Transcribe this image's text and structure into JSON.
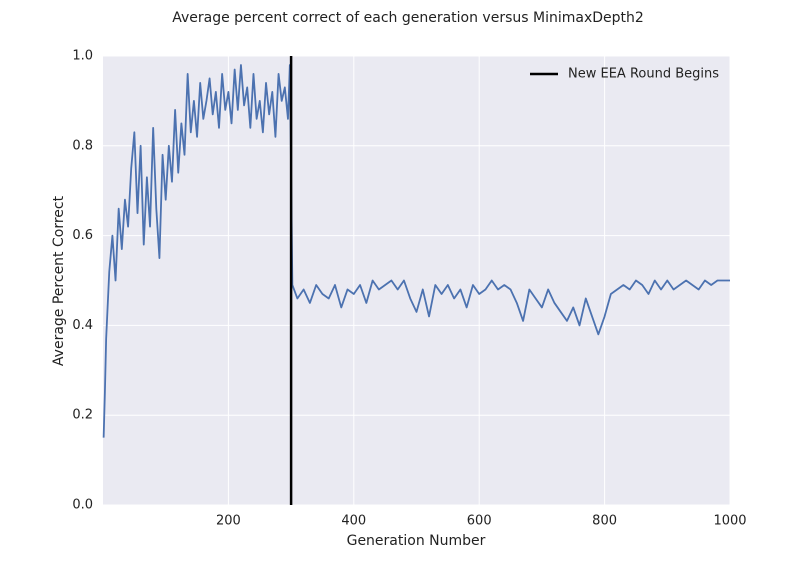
{
  "chart_data": {
    "type": "line",
    "title": "Average percent correct of each generation versus MinimaxDepth2",
    "xlabel": "Generation Number",
    "ylabel": "Average Percent Correct",
    "xlim": [
      0,
      1000
    ],
    "xticks": [
      200,
      400,
      600,
      800,
      1000
    ],
    "ylim": [
      0,
      1
    ],
    "yticks": [
      {
        "value": 0,
        "label": "0.0"
      },
      {
        "value": 0.2,
        "label": "0.2"
      },
      {
        "value": 0.4,
        "label": "0.4"
      },
      {
        "value": 0.6,
        "label": "0.6"
      },
      {
        "value": 0.8,
        "label": "0.8"
      },
      {
        "value": 1,
        "label": "1.0"
      }
    ],
    "grid": true,
    "legend": "upper right",
    "x": [
      1,
      3,
      5,
      10,
      15,
      20,
      25,
      30,
      35,
      40,
      45,
      50,
      55,
      60,
      65,
      70,
      75,
      80,
      85,
      90,
      95,
      100,
      105,
      110,
      115,
      120,
      125,
      130,
      135,
      140,
      145,
      150,
      155,
      160,
      165,
      170,
      175,
      180,
      185,
      190,
      195,
      200,
      205,
      210,
      215,
      220,
      225,
      230,
      235,
      240,
      245,
      250,
      255,
      260,
      265,
      270,
      275,
      280,
      285,
      290,
      295,
      298,
      302,
      310,
      320,
      330,
      340,
      350,
      360,
      370,
      380,
      390,
      400,
      410,
      420,
      430,
      440,
      450,
      460,
      470,
      480,
      490,
      500,
      510,
      520,
      530,
      540,
      550,
      560,
      570,
      580,
      590,
      600,
      610,
      620,
      630,
      640,
      650,
      660,
      670,
      680,
      690,
      700,
      710,
      720,
      730,
      740,
      750,
      760,
      770,
      780,
      790,
      800,
      810,
      820,
      830,
      840,
      850,
      860,
      870,
      880,
      890,
      900,
      910,
      920,
      930,
      940,
      950,
      960,
      970,
      980,
      990,
      1000
    ],
    "series": [
      {
        "name": "Average Percent Correct",
        "color": "#4c72b0",
        "values": [
          0.15,
          0.25,
          0.37,
          0.52,
          0.6,
          0.5,
          0.66,
          0.57,
          0.68,
          0.62,
          0.75,
          0.83,
          0.65,
          0.8,
          0.58,
          0.73,
          0.62,
          0.84,
          0.66,
          0.55,
          0.78,
          0.68,
          0.8,
          0.72,
          0.88,
          0.74,
          0.85,
          0.78,
          0.96,
          0.83,
          0.9,
          0.82,
          0.94,
          0.86,
          0.9,
          0.95,
          0.87,
          0.92,
          0.84,
          0.96,
          0.88,
          0.92,
          0.85,
          0.97,
          0.88,
          0.98,
          0.89,
          0.93,
          0.84,
          0.96,
          0.86,
          0.9,
          0.83,
          0.94,
          0.87,
          0.92,
          0.82,
          0.96,
          0.9,
          0.93,
          0.86,
          0.98,
          0.49,
          0.46,
          0.48,
          0.45,
          0.49,
          0.47,
          0.46,
          0.49,
          0.44,
          0.48,
          0.47,
          0.49,
          0.45,
          0.5,
          0.48,
          0.49,
          0.5,
          0.48,
          0.5,
          0.46,
          0.43,
          0.48,
          0.42,
          0.49,
          0.47,
          0.49,
          0.46,
          0.48,
          0.44,
          0.49,
          0.47,
          0.48,
          0.5,
          0.48,
          0.49,
          0.48,
          0.45,
          0.41,
          0.48,
          0.46,
          0.44,
          0.48,
          0.45,
          0.43,
          0.41,
          0.44,
          0.4,
          0.46,
          0.42,
          0.38,
          0.42,
          0.47,
          0.48,
          0.49,
          0.48,
          0.5,
          0.49,
          0.47,
          0.5,
          0.48,
          0.5,
          0.48,
          0.49,
          0.5,
          0.49,
          0.48,
          0.5,
          0.49,
          0.5,
          0.5,
          0.5
        ]
      }
    ],
    "vline": {
      "x": 300,
      "name": "New EEA Round Begins",
      "color": "#000000"
    }
  }
}
